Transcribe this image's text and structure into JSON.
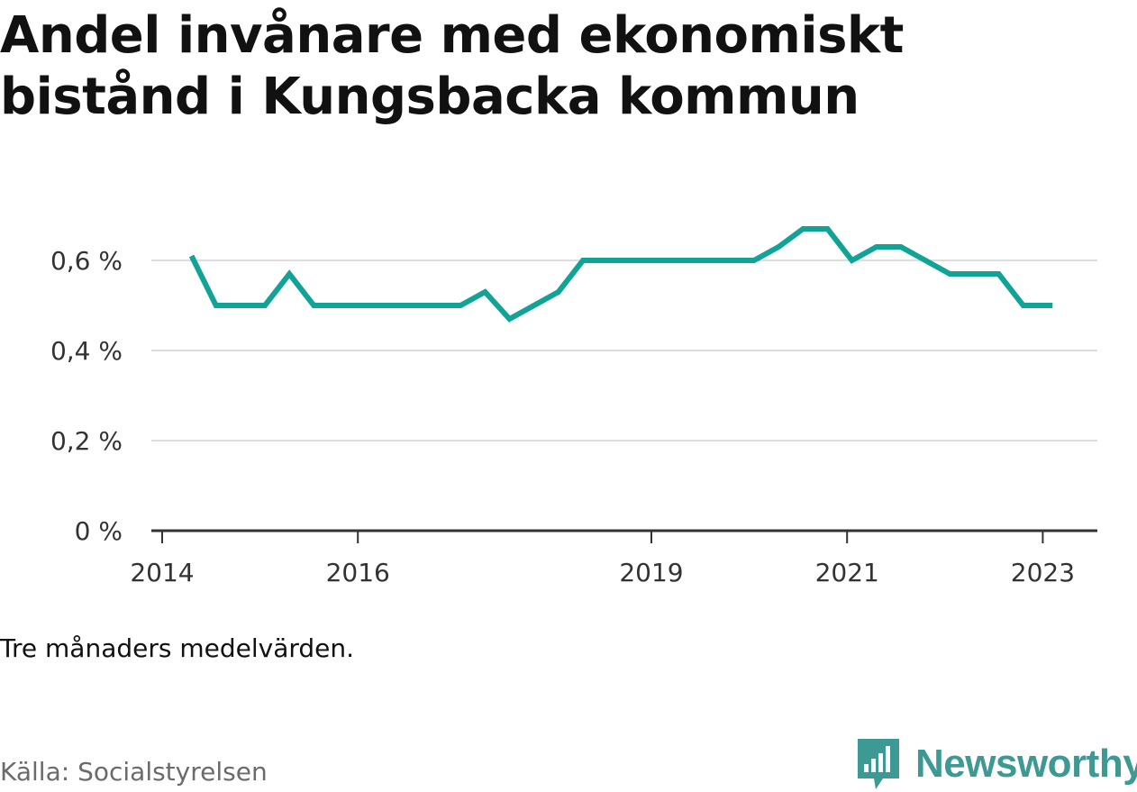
{
  "title_line1": "Andel invånare med ekonomiskt",
  "title_line2": "bistånd i Kungsbacka kommun",
  "note": "Tre månaders medelvärden.",
  "source": "Källa: Socialstyrelsen",
  "brand": "Newsworthy",
  "colors": {
    "line": "#10a396",
    "grid": "#dddddd",
    "axis": "#333333",
    "brand": "#3d9993"
  },
  "chart_data": {
    "type": "line",
    "title": "Andel invånare med ekonomiskt bistånd i Kungsbacka kommun",
    "xlabel": "",
    "ylabel": "",
    "ylim": [
      0,
      0.7
    ],
    "grid": true,
    "x_ticks": [
      2014,
      2016,
      2019,
      2021,
      2023
    ],
    "x_tick_labels": [
      "2014",
      "2016",
      "2019",
      "2021",
      "2023"
    ],
    "y_ticks": [
      0,
      0.2,
      0.4,
      0.6
    ],
    "y_tick_labels": [
      "0 %",
      "0,2 %",
      "0,4 %",
      "0,6 %"
    ],
    "series": [
      {
        "name": "",
        "x": [
          2014.3,
          2014.55,
          2014.8,
          2015.05,
          2015.3,
          2015.55,
          2015.8,
          2016.05,
          2016.3,
          2016.55,
          2016.8,
          2017.05,
          2017.3,
          2017.55,
          2017.8,
          2018.05,
          2018.3,
          2018.55,
          2018.8,
          2019.05,
          2019.3,
          2019.55,
          2019.8,
          2020.05,
          2020.3,
          2020.55,
          2020.8,
          2021.05,
          2021.3,
          2021.55,
          2021.8,
          2022.05,
          2022.3,
          2022.55,
          2022.8,
          2023.05,
          2023.1
        ],
        "y": [
          0.61,
          0.5,
          0.5,
          0.5,
          0.57,
          0.5,
          0.5,
          0.5,
          0.5,
          0.5,
          0.5,
          0.5,
          0.53,
          0.47,
          0.5,
          0.53,
          0.6,
          0.6,
          0.6,
          0.6,
          0.6,
          0.6,
          0.6,
          0.6,
          0.63,
          0.67,
          0.67,
          0.6,
          0.63,
          0.63,
          0.6,
          0.57,
          0.57,
          0.57,
          0.5,
          0.5,
          0.5
        ]
      }
    ]
  }
}
